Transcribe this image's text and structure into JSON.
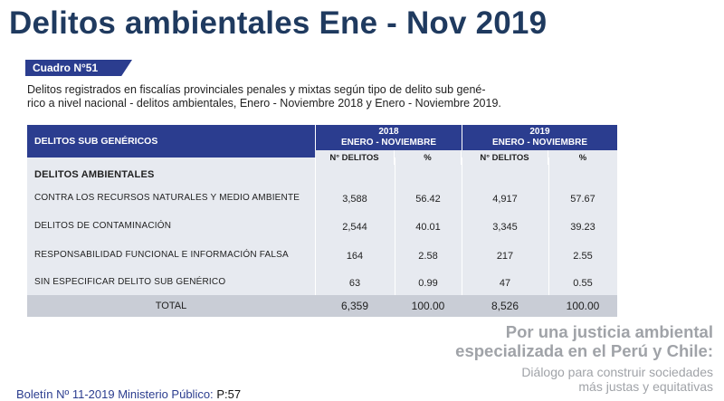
{
  "page": {
    "title": "Delitos ambientales Ene - Nov 2019"
  },
  "cuadro": {
    "label": "Cuadro N°51",
    "description_line1": "Delitos registrados en fiscalías provinciales penales y mixtas según tipo de delito sub gené-",
    "description_line2": "rico a nivel nacional - delitos ambientales, Enero - Noviembre 2018 y Enero - Noviembre 2019."
  },
  "table": {
    "col_header": "DELITOS SUB GENÉRICOS",
    "year_2018": "2018",
    "year_2019": "2019",
    "period": "ENERO - NOVIEMBRE",
    "sub_delitos": "N° DELITOS",
    "sub_pct": "%",
    "group_label": "DELITOS AMBIENTALES",
    "rows": [
      {
        "label": "CONTRA LOS RECURSOS NATURALES Y MEDIO AMBIENTE",
        "d2018": "3,588",
        "p2018": "56.42",
        "d2019": "4,917",
        "p2019": "57.67"
      },
      {
        "label": "DELITOS DE CONTAMINACIÓN",
        "d2018": "2,544",
        "p2018": "40.01",
        "d2019": "3,345",
        "p2019": "39.23"
      },
      {
        "label": "RESPONSABILIDAD FUNCIONAL E INFORMACIÓN FALSA",
        "d2018": "164",
        "p2018": "2.58",
        "d2019": "217",
        "p2019": "2.55"
      },
      {
        "label": "SIN ESPECIFICAR DELITO SUB GENÉRICO",
        "d2018": "63",
        "p2018": "0.99",
        "d2019": "47",
        "p2019": "0.55"
      }
    ],
    "total": {
      "label": "TOTAL",
      "d2018": "6,359",
      "p2018": "100.00",
      "d2019": "8,526",
      "p2019": "100.00"
    }
  },
  "footer": {
    "line1": "Por una justicia ambiental",
    "line2": "especializada en el Perú y Chile:",
    "line3": "Diálogo para construir sociedades",
    "line4": "más justas y equitativas",
    "boletin": "Boletín Nº 11-2019 Ministerio Público:",
    "page_ref": "P:57"
  }
}
